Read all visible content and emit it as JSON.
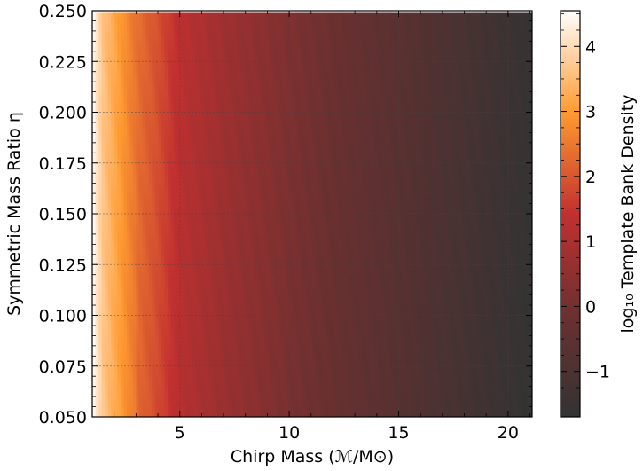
{
  "chart_data": {
    "type": "heatmap",
    "title": "",
    "xlabel": "Chirp Mass (ℳ/M⊙)",
    "ylabel": "Symmetric Mass Ratio η",
    "colorbar_label": "log₁₀ Template Bank Density",
    "xlim": [
      1.0,
      21.1
    ],
    "ylim": [
      0.05,
      0.25
    ],
    "x_ticks": [
      5,
      10,
      15,
      20
    ],
    "x_tick_labels": [
      "5",
      "10",
      "15",
      "20"
    ],
    "y_ticks": [
      0.05,
      0.075,
      0.1,
      0.125,
      0.15,
      0.175,
      0.2,
      0.225,
      0.25
    ],
    "y_tick_labels": [
      "0.050",
      "0.075",
      "0.100",
      "0.125",
      "0.150",
      "0.175",
      "0.200",
      "0.225",
      "0.250"
    ],
    "colorbar_range": [
      -1.7,
      4.55
    ],
    "colorbar_ticks": [
      -1,
      0,
      1,
      2,
      3,
      4
    ],
    "colorbar_tick_labels": [
      "−1",
      "0",
      "1",
      "2",
      "3",
      "4"
    ],
    "colormap_stops": [
      "#333333",
      "#6b3030",
      "#c23030",
      "#ff9a30",
      "#ffffff"
    ],
    "grid": true,
    "density_profile": {
      "chirp_mass": [
        1.0,
        1.5,
        2.0,
        2.5,
        3.0,
        4.0,
        5.0,
        7.0,
        10.0,
        13.0,
        15.0,
        18.0,
        21.1
      ],
      "log10_density": [
        4.5,
        3.6,
        3.2,
        2.8,
        2.4,
        1.9,
        1.3,
        0.8,
        0.2,
        -0.3,
        -0.6,
        -1.1,
        -1.6
      ]
    },
    "empty_bins_note": ""
  }
}
